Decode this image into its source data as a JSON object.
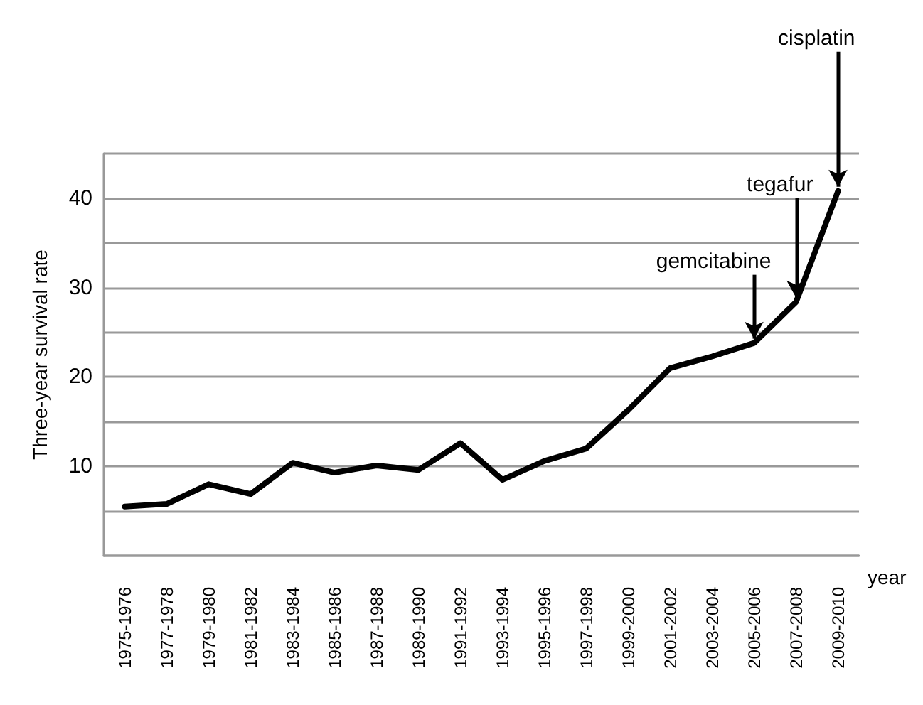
{
  "chart_data": {
    "type": "line",
    "xlabel": "year",
    "ylabel": "Three-year survival rate",
    "categories": [
      "1975-1976",
      "1977-1978",
      "1979-1980",
      "1981-1982",
      "1983-1984",
      "1985-1986",
      "1987-1988",
      "1989-1990",
      "1991-1992",
      "1993-1994",
      "1995-1996",
      "1997-1998",
      "1999-2000",
      "2001-2002",
      "2003-2004",
      "2005-2006",
      "2007-2008",
      "2009-2010"
    ],
    "series": [
      {
        "color": "#000000",
        "values": [
          5.5,
          5.8,
          8.0,
          6.9,
          10.4,
          9.3,
          10.1,
          9.6,
          12.6,
          8.5,
          10.6,
          12.0,
          16.3,
          21.0,
          22.3,
          23.8,
          28.4,
          40.8
        ]
      }
    ],
    "ylim": [
      0,
      45
    ],
    "yticks": [
      {
        "value": 0,
        "label": null
      },
      {
        "value": 5,
        "label": null
      },
      10,
      {
        "value": 15,
        "label": null
      },
      20,
      {
        "value": 25,
        "label": null
      },
      30,
      {
        "value": 35,
        "label": null
      },
      40,
      {
        "value": 45,
        "label": null
      }
    ],
    "grid": "y",
    "marker": "none",
    "line_style": "solid",
    "annotations": [
      {
        "text": "gemcitabine",
        "x": "2005-2006",
        "y": 23.8
      },
      {
        "text": "tegafur",
        "x": "2007-2008",
        "y": 28.4
      },
      {
        "text": "cisplatin",
        "x": "2009-2010",
        "y": 40.8
      }
    ]
  }
}
